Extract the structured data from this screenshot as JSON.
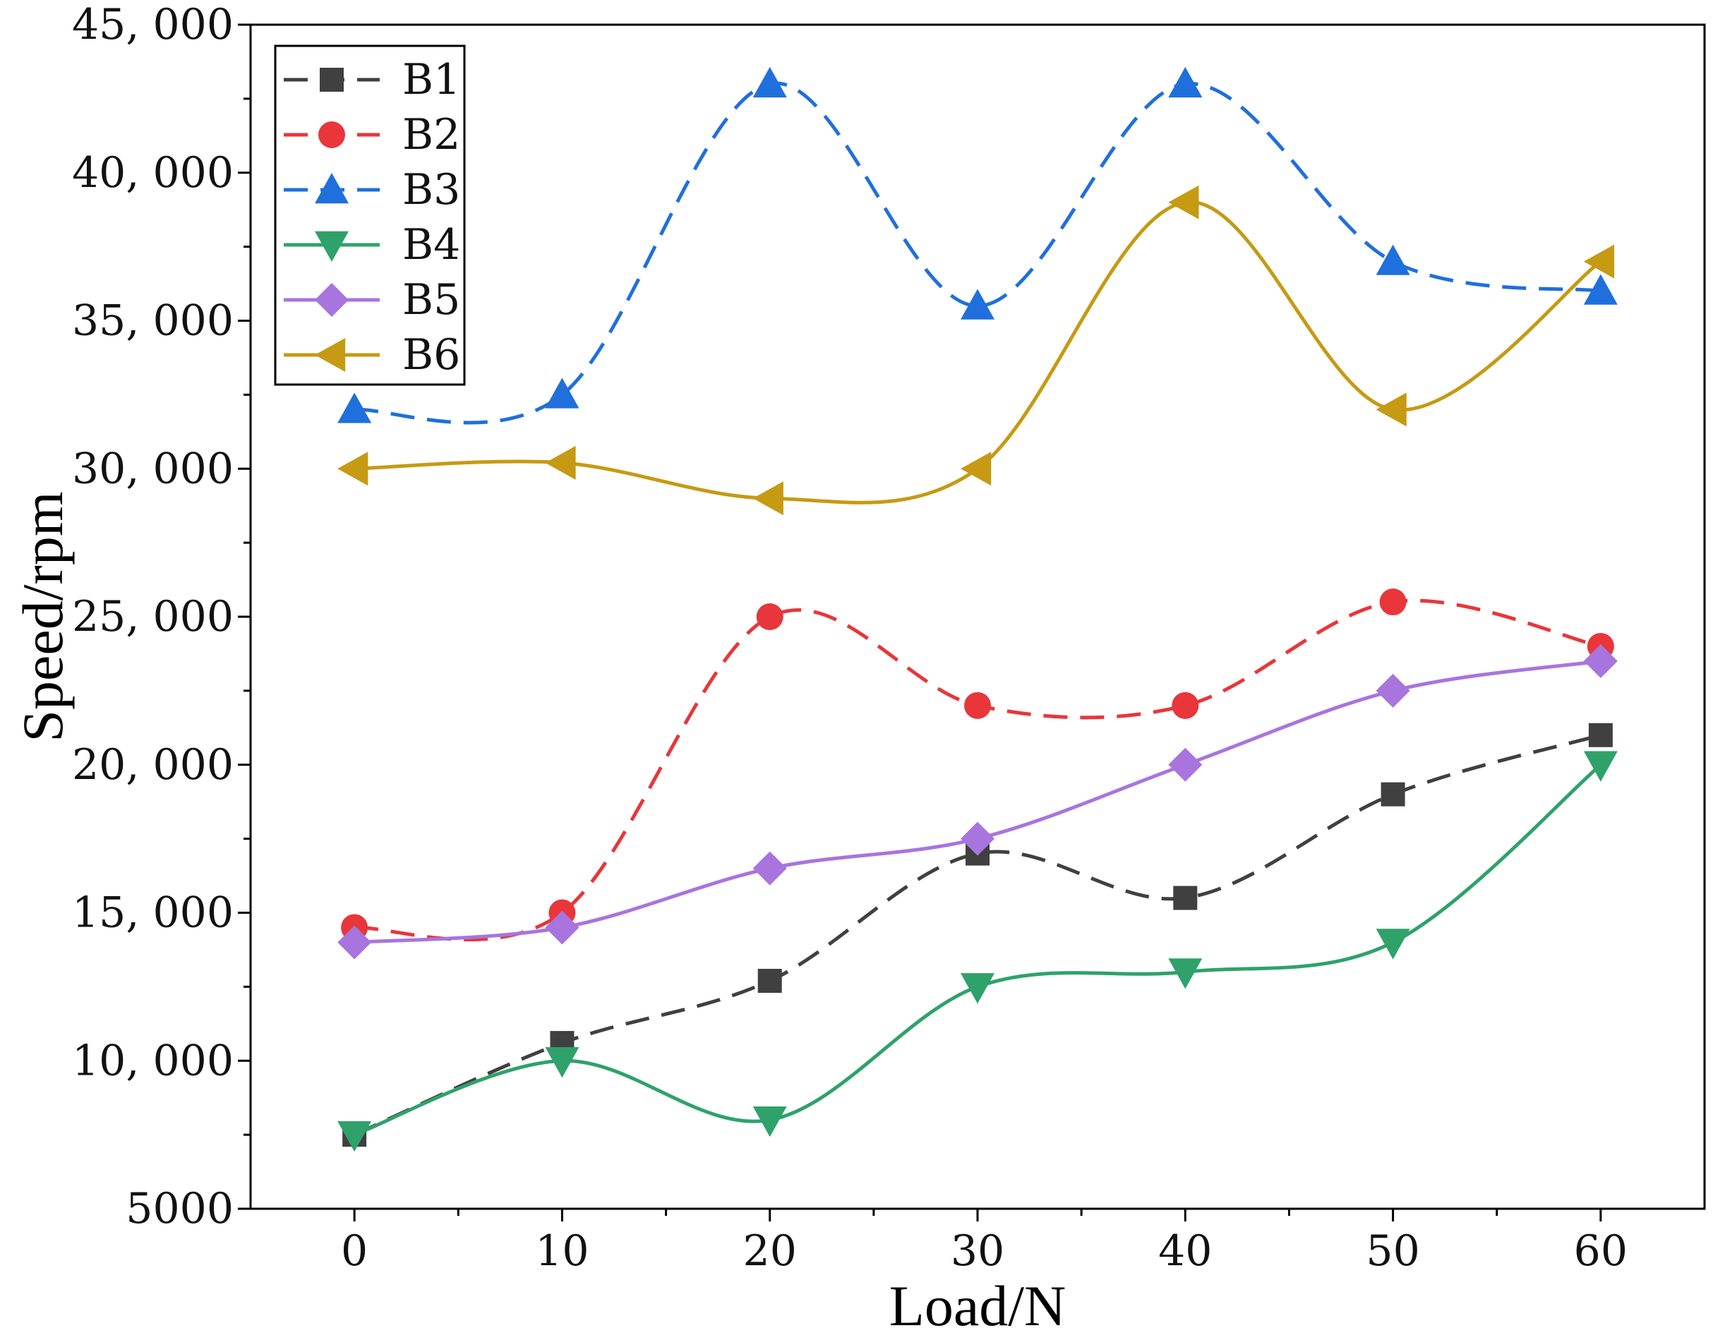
{
  "chart_data": {
    "type": "line",
    "title": "",
    "xlabel": "Load/N",
    "ylabel": "Speed/rpm",
    "x": [
      0,
      10,
      20,
      30,
      40,
      50,
      60
    ],
    "xlim": [
      -5,
      65
    ],
    "ylim": [
      5000,
      45000
    ],
    "x_ticks": [
      0,
      10,
      20,
      30,
      40,
      50,
      60
    ],
    "x_tick_labels": [
      "0",
      "10",
      "20",
      "30",
      "40",
      "50",
      "60"
    ],
    "y_ticks": [
      5000,
      10000,
      15000,
      20000,
      25000,
      30000,
      35000,
      40000,
      45000
    ],
    "y_tick_labels": [
      "5000",
      "10, 000",
      "15, 000",
      "20, 000",
      "25, 000",
      "30, 000",
      "35, 000",
      "40, 000",
      "45, 000"
    ],
    "grid": false,
    "legend_position": "top-left",
    "series": [
      {
        "name": "B1",
        "color": "#404040",
        "marker": "square",
        "dash": "dashed",
        "values": [
          7500,
          10600,
          12700,
          17000,
          15500,
          19000,
          21000
        ]
      },
      {
        "name": "B2",
        "color": "#e8363a",
        "marker": "circle",
        "dash": "dashed",
        "values": [
          14500,
          15000,
          25000,
          22000,
          22000,
          25500,
          24000
        ]
      },
      {
        "name": "B3",
        "color": "#1f6fdc",
        "marker": "triangle-up",
        "dash": "dashed",
        "values": [
          32000,
          32500,
          43000,
          35500,
          43000,
          37000,
          36000
        ]
      },
      {
        "name": "B4",
        "color": "#2ea26a",
        "marker": "triangle-down",
        "dash": "solid",
        "values": [
          7500,
          10000,
          8000,
          12500,
          13000,
          14000,
          20000
        ]
      },
      {
        "name": "B5",
        "color": "#a874de",
        "marker": "diamond",
        "dash": "solid",
        "values": [
          14000,
          14500,
          16500,
          17500,
          20000,
          22500,
          23500
        ]
      },
      {
        "name": "B6",
        "color": "#c69a12",
        "marker": "triangle-left",
        "dash": "solid",
        "values": [
          30000,
          30200,
          29000,
          30000,
          39000,
          32000,
          37000
        ]
      }
    ]
  }
}
